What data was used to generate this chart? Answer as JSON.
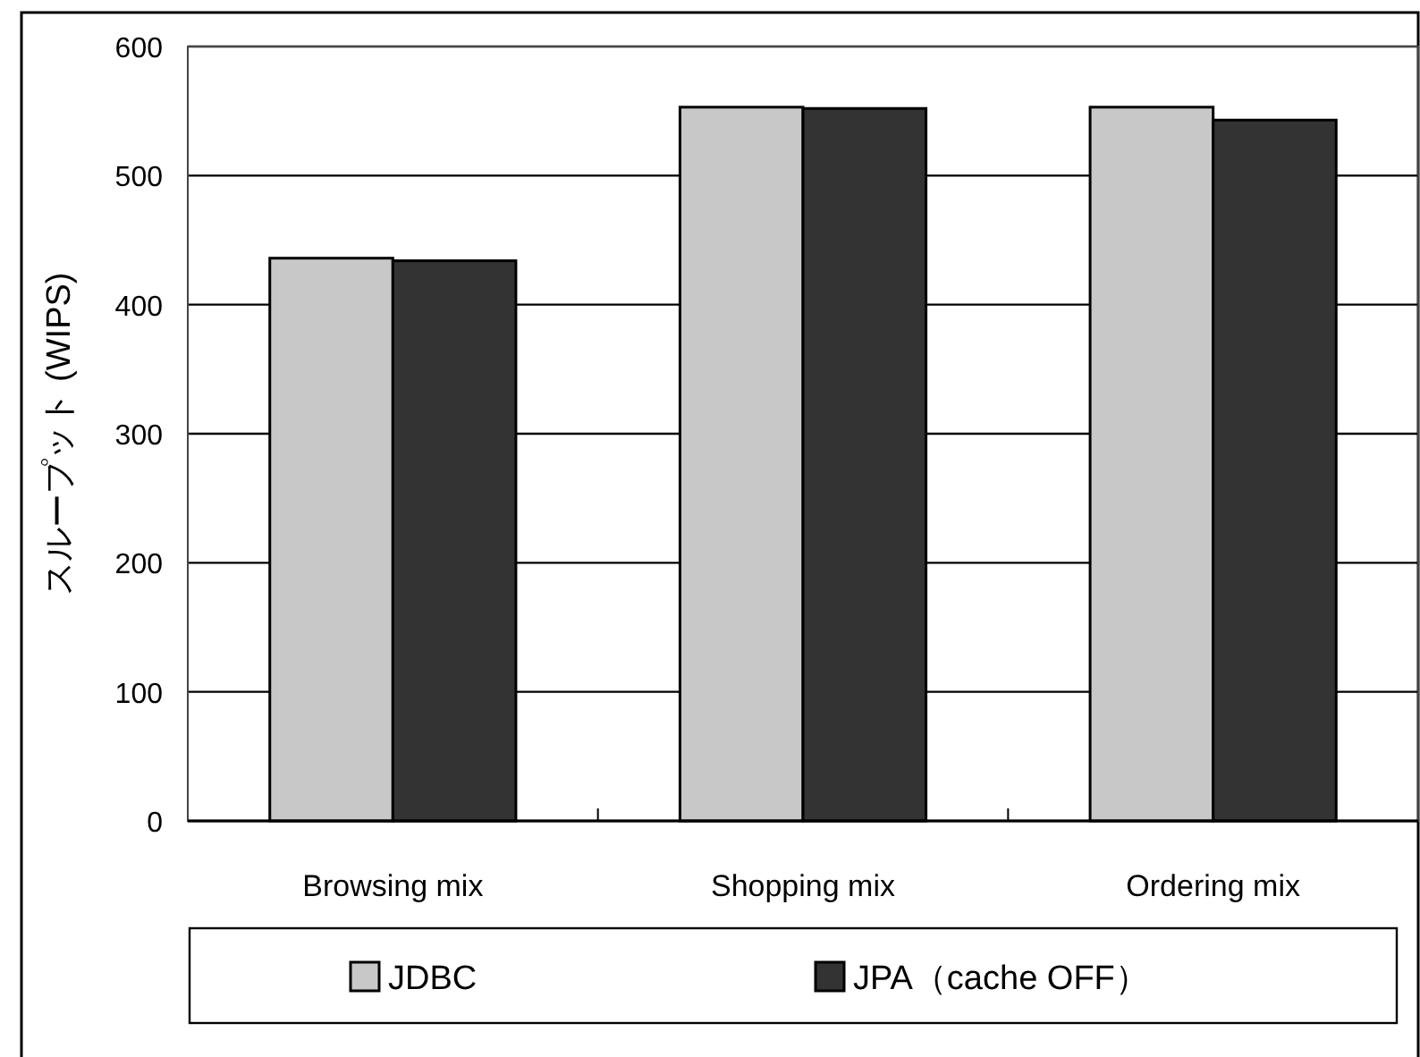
{
  "chart_data": {
    "type": "bar",
    "ylabel": "スループット (WIPS)",
    "categories": [
      "Browsing mix",
      "Shopping mix",
      "Ordering mix"
    ],
    "series": [
      {
        "name": "JDBC",
        "color": "#c8c8c8",
        "values": [
          436,
          553,
          553
        ]
      },
      {
        "name": "JPA（cache OFF）",
        "color": "#333333",
        "values": [
          434,
          552,
          543
        ]
      }
    ],
    "ylim": [
      0,
      600
    ],
    "yticks": [
      0,
      100,
      200,
      300,
      400,
      500,
      600
    ],
    "grid": "y",
    "legend": "bottom"
  }
}
